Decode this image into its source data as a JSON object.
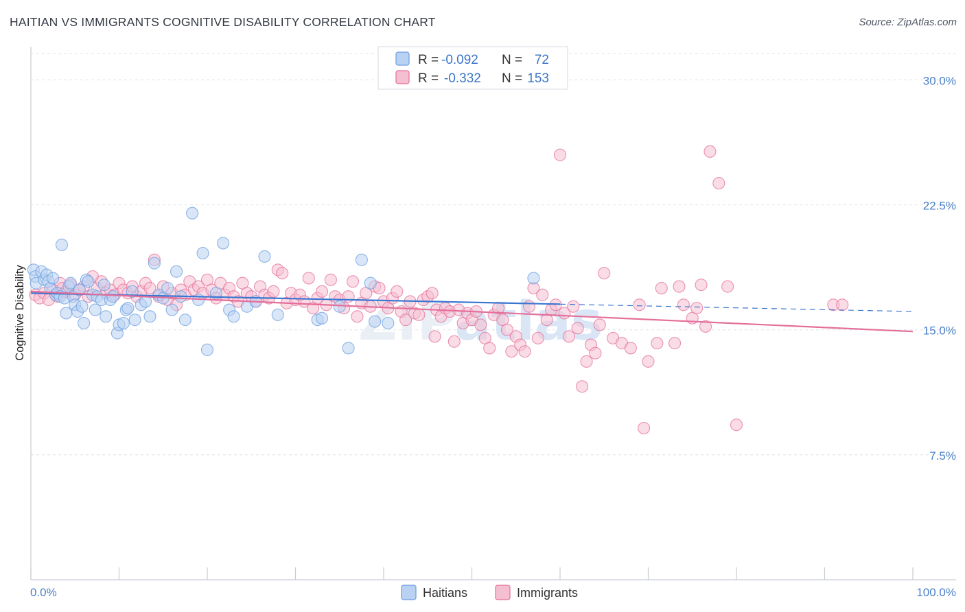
{
  "title": "HAITIAN VS IMMIGRANTS COGNITIVE DISABILITY CORRELATION CHART",
  "source": "Source: ZipAtlas.com",
  "watermark": "ZIPatlas",
  "chart_data": {
    "type": "scatter",
    "ylabel": "Cognitive Disability",
    "xlabel": "",
    "xlim": [
      0,
      100
    ],
    "ylim": [
      0,
      31.5
    ],
    "y_ticks": [
      7.5,
      15.0,
      22.5,
      30.0
    ],
    "y_tick_labels": [
      "7.5%",
      "15.0%",
      "22.5%",
      "30.0%"
    ],
    "x_tick_labels": [
      "0.0%",
      "100.0%"
    ],
    "grid": "horizontal dashed",
    "legend_position": "top-center",
    "stats": [
      {
        "R_label": "R =",
        "R": "-0.092",
        "N_label": "N =",
        "N": "72"
      },
      {
        "R_label": "R =",
        "R": "-0.332",
        "N_label": "N =",
        "N": "153"
      }
    ],
    "series": [
      {
        "name": "Haitians",
        "color": "#6a9de0",
        "fill": "#b9d2f3",
        "trend": {
          "x0": 0,
          "y0": 17.2,
          "x1": 100,
          "y1": 16.1,
          "solid_until": 60
        },
        "points": [
          [
            0.3,
            18.6
          ],
          [
            0.5,
            18.2
          ],
          [
            0.6,
            17.8
          ],
          [
            1.2,
            18.5
          ],
          [
            1.5,
            18.0
          ],
          [
            1.8,
            18.3
          ],
          [
            2.0,
            17.9
          ],
          [
            2.2,
            17.5
          ],
          [
            2.5,
            18.1
          ],
          [
            2.8,
            17.1
          ],
          [
            3.0,
            17.2
          ],
          [
            3.3,
            17.0
          ],
          [
            3.5,
            20.1
          ],
          [
            3.8,
            16.9
          ],
          [
            4.0,
            16.0
          ],
          [
            4.3,
            17.6
          ],
          [
            4.5,
            17.8
          ],
          [
            4.8,
            17.0
          ],
          [
            5.0,
            16.5
          ],
          [
            5.3,
            16.1
          ],
          [
            5.5,
            17.4
          ],
          [
            5.8,
            16.4
          ],
          [
            6.0,
            15.4
          ],
          [
            6.3,
            18.0
          ],
          [
            6.5,
            17.9
          ],
          [
            7.0,
            17.1
          ],
          [
            7.3,
            16.2
          ],
          [
            7.5,
            17.0
          ],
          [
            8.0,
            16.8
          ],
          [
            8.3,
            17.7
          ],
          [
            8.5,
            15.8
          ],
          [
            9.0,
            16.8
          ],
          [
            9.3,
            17.0
          ],
          [
            9.8,
            14.8
          ],
          [
            10.0,
            15.3
          ],
          [
            10.5,
            15.4
          ],
          [
            10.8,
            16.2
          ],
          [
            11.0,
            16.3
          ],
          [
            11.5,
            17.3
          ],
          [
            11.8,
            15.6
          ],
          [
            12.5,
            16.5
          ],
          [
            13.0,
            16.7
          ],
          [
            13.5,
            15.8
          ],
          [
            14.0,
            19.0
          ],
          [
            14.5,
            17.1
          ],
          [
            15.0,
            16.9
          ],
          [
            15.5,
            17.5
          ],
          [
            16.0,
            16.2
          ],
          [
            16.5,
            18.5
          ],
          [
            17.0,
            17.0
          ],
          [
            17.5,
            15.6
          ],
          [
            18.3,
            22.0
          ],
          [
            19.0,
            16.8
          ],
          [
            19.5,
            19.6
          ],
          [
            20.0,
            13.8
          ],
          [
            21.0,
            17.2
          ],
          [
            21.8,
            20.2
          ],
          [
            22.5,
            16.2
          ],
          [
            23.0,
            15.8
          ],
          [
            24.5,
            16.4
          ],
          [
            25.5,
            16.7
          ],
          [
            26.5,
            19.4
          ],
          [
            28.0,
            15.9
          ],
          [
            32.5,
            15.6
          ],
          [
            33.0,
            15.7
          ],
          [
            35.0,
            16.4
          ],
          [
            36.0,
            13.9
          ],
          [
            37.5,
            19.2
          ],
          [
            38.5,
            17.8
          ],
          [
            39.0,
            15.5
          ],
          [
            40.5,
            15.4
          ],
          [
            57.0,
            18.1
          ]
        ]
      },
      {
        "name": "Immigrants",
        "color": "#e46f9a",
        "fill": "#f5bfd2",
        "trend": {
          "x0": 0,
          "y0": 17.3,
          "x1": 100,
          "y1": 14.9
        },
        "points": [
          [
            0.5,
            17.1
          ],
          [
            1.0,
            16.9
          ],
          [
            1.5,
            17.2
          ],
          [
            2.0,
            16.8
          ],
          [
            2.5,
            17.4
          ],
          [
            3.0,
            17.0
          ],
          [
            3.3,
            17.8
          ],
          [
            3.6,
            17.5
          ],
          [
            4.0,
            17.3
          ],
          [
            4.5,
            17.7
          ],
          [
            5.0,
            17.1
          ],
          [
            5.5,
            17.4
          ],
          [
            6.0,
            17.6
          ],
          [
            6.5,
            17.0
          ],
          [
            7.0,
            18.2
          ],
          [
            7.5,
            17.5
          ],
          [
            8.0,
            17.9
          ],
          [
            8.5,
            17.2
          ],
          [
            9.0,
            17.4
          ],
          [
            9.5,
            17.1
          ],
          [
            10.0,
            17.8
          ],
          [
            10.5,
            17.4
          ],
          [
            11.0,
            17.2
          ],
          [
            11.5,
            17.6
          ],
          [
            12.0,
            17.0
          ],
          [
            12.5,
            17.3
          ],
          [
            13.0,
            17.8
          ],
          [
            13.5,
            17.5
          ],
          [
            14.0,
            19.2
          ],
          [
            14.5,
            17.0
          ],
          [
            15.0,
            17.6
          ],
          [
            15.5,
            16.8
          ],
          [
            16.0,
            17.2
          ],
          [
            16.5,
            16.5
          ],
          [
            17.0,
            17.4
          ],
          [
            17.5,
            17.1
          ],
          [
            18.0,
            17.9
          ],
          [
            18.5,
            17.4
          ],
          [
            19.0,
            17.6
          ],
          [
            19.5,
            17.2
          ],
          [
            20.0,
            18.0
          ],
          [
            20.5,
            17.4
          ],
          [
            21.0,
            16.9
          ],
          [
            21.5,
            17.8
          ],
          [
            22.0,
            17.1
          ],
          [
            22.5,
            17.5
          ],
          [
            23.0,
            17.0
          ],
          [
            23.5,
            16.7
          ],
          [
            24.0,
            17.8
          ],
          [
            24.5,
            17.2
          ],
          [
            25.0,
            17.0
          ],
          [
            25.5,
            16.7
          ],
          [
            26.0,
            17.6
          ],
          [
            26.5,
            17.1
          ],
          [
            27.0,
            16.9
          ],
          [
            27.5,
            17.3
          ],
          [
            28.0,
            18.6
          ],
          [
            28.5,
            18.4
          ],
          [
            29.0,
            16.6
          ],
          [
            29.5,
            17.2
          ],
          [
            30.0,
            16.8
          ],
          [
            30.5,
            17.1
          ],
          [
            31.0,
            16.7
          ],
          [
            31.5,
            18.1
          ],
          [
            32.0,
            16.3
          ],
          [
            32.5,
            16.9
          ],
          [
            33.0,
            17.3
          ],
          [
            33.5,
            16.5
          ],
          [
            34.0,
            18.0
          ],
          [
            34.5,
            17.0
          ],
          [
            35.0,
            16.8
          ],
          [
            35.5,
            16.3
          ],
          [
            36.0,
            17.0
          ],
          [
            36.5,
            17.9
          ],
          [
            37.0,
            15.8
          ],
          [
            37.5,
            16.6
          ],
          [
            38.0,
            17.2
          ],
          [
            38.5,
            16.4
          ],
          [
            39.0,
            17.6
          ],
          [
            39.5,
            17.5
          ],
          [
            40.0,
            16.7
          ],
          [
            40.5,
            16.3
          ],
          [
            41.0,
            16.9
          ],
          [
            41.5,
            17.3
          ],
          [
            42.0,
            16.1
          ],
          [
            42.5,
            15.6
          ],
          [
            43.0,
            16.7
          ],
          [
            43.5,
            16.0
          ],
          [
            44.0,
            15.9
          ],
          [
            44.5,
            16.8
          ],
          [
            45.0,
            17.0
          ],
          [
            45.5,
            17.2
          ],
          [
            46.0,
            16.2
          ],
          [
            46.5,
            15.8
          ],
          [
            47.0,
            16.3
          ],
          [
            47.5,
            16.1
          ],
          [
            48.0,
            14.3
          ],
          [
            48.5,
            16.2
          ],
          [
            49.0,
            15.4
          ],
          [
            49.5,
            16.0
          ],
          [
            50.0,
            15.6
          ],
          [
            50.5,
            16.1
          ],
          [
            51.0,
            15.3
          ],
          [
            51.5,
            14.5
          ],
          [
            52.0,
            13.9
          ],
          [
            52.5,
            15.9
          ],
          [
            53.0,
            16.3
          ],
          [
            53.5,
            15.6
          ],
          [
            54.0,
            15.0
          ],
          [
            54.5,
            13.7
          ],
          [
            55.0,
            14.6
          ],
          [
            55.5,
            14.1
          ],
          [
            56.0,
            13.7
          ],
          [
            56.5,
            16.4
          ],
          [
            57.0,
            17.5
          ],
          [
            57.5,
            14.5
          ],
          [
            58.0,
            17.1
          ],
          [
            58.5,
            15.6
          ],
          [
            59.0,
            16.2
          ],
          [
            59.5,
            16.5
          ],
          [
            60.0,
            25.5
          ],
          [
            60.5,
            16.0
          ],
          [
            61.0,
            14.6
          ],
          [
            61.5,
            16.4
          ],
          [
            62.0,
            15.1
          ],
          [
            62.5,
            11.6
          ],
          [
            63.0,
            13.1
          ],
          [
            63.5,
            14.1
          ],
          [
            64.0,
            13.6
          ],
          [
            64.5,
            15.3
          ],
          [
            65.0,
            18.4
          ],
          [
            66.0,
            14.5
          ],
          [
            67.0,
            14.2
          ],
          [
            68.0,
            13.9
          ],
          [
            69.0,
            16.5
          ],
          [
            70.0,
            13.1
          ],
          [
            71.0,
            14.2
          ],
          [
            71.5,
            17.5
          ],
          [
            73.0,
            14.2
          ],
          [
            73.5,
            17.6
          ],
          [
            74.0,
            16.5
          ],
          [
            75.0,
            15.7
          ],
          [
            76.0,
            17.7
          ],
          [
            77.0,
            25.7
          ],
          [
            78.0,
            23.8
          ],
          [
            79.0,
            17.6
          ],
          [
            80.0,
            9.3
          ],
          [
            91.0,
            16.5
          ],
          [
            92.0,
            16.5
          ],
          [
            69.5,
            9.1
          ],
          [
            76.5,
            15.2
          ],
          [
            75.5,
            16.3
          ],
          [
            45.8,
            14.6
          ]
        ]
      }
    ]
  },
  "bottom_legend": [
    {
      "label": "Haitians"
    },
    {
      "label": "Immigrants"
    }
  ]
}
